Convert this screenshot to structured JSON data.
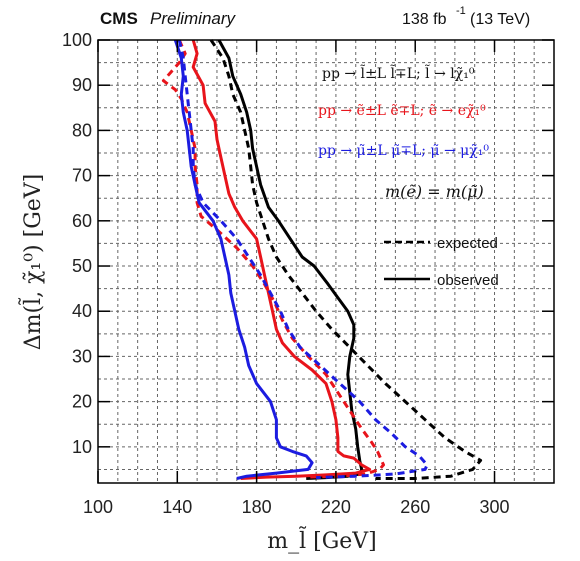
{
  "header": {
    "experiment": "CMS",
    "status": "Preliminary",
    "luminosity": "138 fb",
    "lumi_exp": "-1",
    "energy": "(13 TeV)"
  },
  "legend": {
    "process_all": "pp → l̃±L l̃∓L; l̃ → lχ̃₁⁰",
    "process_e": "pp → ẽ±L ẽ∓L; ẽ → eχ̃₁⁰",
    "process_mu": "pp → μ̃±L μ̃∓L; μ̃ → μχ̃₁⁰",
    "mass_condition": "m(ẽ) = m(μ̃)",
    "expected": "expected",
    "observed": "observed"
  },
  "colors": {
    "all": "#000000",
    "electron": "#e8141b",
    "muon": "#1c1ce0",
    "grid": "#666666"
  },
  "chart_data": {
    "type": "line",
    "xlabel": "m_l̃ [GeV]",
    "ylabel": "Δm(l̃, χ̃₁⁰) [GeV]",
    "xlim": [
      100,
      330
    ],
    "ylim": [
      2,
      100
    ],
    "xticks": [
      100,
      140,
      180,
      220,
      260,
      300
    ],
    "yticks": [
      10,
      20,
      30,
      40,
      50,
      60,
      70,
      80,
      90,
      100
    ],
    "grid": true,
    "series": [
      {
        "name": "pp → l̃±L l̃∓L; l̃ → lχ̃₁⁰ observed",
        "color": "#000000",
        "dash": false,
        "points": [
          [
            161,
            100
          ],
          [
            166,
            96
          ],
          [
            168,
            92
          ],
          [
            172,
            88
          ],
          [
            175,
            84
          ],
          [
            177,
            80
          ],
          [
            178,
            76
          ],
          [
            180,
            72
          ],
          [
            182,
            68
          ],
          [
            186,
            63
          ],
          [
            191,
            60
          ],
          [
            197,
            56
          ],
          [
            203,
            52
          ],
          [
            209,
            50
          ],
          [
            216,
            46
          ],
          [
            221,
            43
          ],
          [
            226,
            40
          ],
          [
            229,
            37
          ],
          [
            229,
            34
          ],
          [
            227,
            30
          ],
          [
            226,
            26
          ],
          [
            227,
            22
          ],
          [
            228,
            18
          ],
          [
            230,
            14
          ],
          [
            231,
            10
          ],
          [
            232,
            7
          ],
          [
            233,
            5
          ],
          [
            232,
            4
          ],
          [
            226,
            3.5
          ],
          [
            215,
            3.2
          ],
          [
            205,
            3
          ]
        ]
      },
      {
        "name": "pp → l̃±L l̃∓L; l̃ → lχ̃₁⁰ expected",
        "color": "#000000",
        "dash": true,
        "points": [
          [
            157,
            100
          ],
          [
            163,
            96
          ],
          [
            166,
            92
          ],
          [
            168,
            88
          ],
          [
            172,
            84
          ],
          [
            174,
            80
          ],
          [
            176,
            76
          ],
          [
            177,
            72
          ],
          [
            178,
            68
          ],
          [
            180,
            64
          ],
          [
            183,
            60
          ],
          [
            186,
            56
          ],
          [
            190,
            52
          ],
          [
            196,
            48
          ],
          [
            203,
            44
          ],
          [
            210,
            40
          ],
          [
            218,
            36
          ],
          [
            227,
            32
          ],
          [
            236,
            28
          ],
          [
            245,
            24
          ],
          [
            255,
            20
          ],
          [
            265,
            16
          ],
          [
            275,
            12
          ],
          [
            285,
            9
          ],
          [
            293,
            7
          ],
          [
            289,
            5
          ],
          [
            278,
            3.5
          ],
          [
            260,
            3
          ],
          [
            240,
            3
          ]
        ]
      },
      {
        "name": "pp → ẽ±L ẽ∓L; ẽ → eχ̃₁⁰ observed",
        "color": "#e8141b",
        "dash": false,
        "points": [
          [
            148,
            100
          ],
          [
            150,
            97
          ],
          [
            148,
            94
          ],
          [
            153,
            90
          ],
          [
            154,
            86
          ],
          [
            159,
            82
          ],
          [
            160,
            78
          ],
          [
            162,
            74
          ],
          [
            164,
            70
          ],
          [
            166,
            66
          ],
          [
            169,
            63
          ],
          [
            173,
            60
          ],
          [
            180,
            56
          ],
          [
            182,
            52
          ],
          [
            184,
            48
          ],
          [
            186,
            44
          ],
          [
            188,
            40
          ],
          [
            190,
            36
          ],
          [
            193,
            33
          ],
          [
            199,
            30
          ],
          [
            208,
            27
          ],
          [
            215,
            24
          ],
          [
            218,
            20
          ],
          [
            220,
            16
          ],
          [
            221,
            12
          ],
          [
            221,
            9
          ],
          [
            224,
            8
          ],
          [
            229,
            7.5
          ],
          [
            233,
            6
          ],
          [
            237,
            5
          ],
          [
            230,
            4.2
          ],
          [
            215,
            3.8
          ],
          [
            200,
            3.5
          ],
          [
            185,
            3.3
          ],
          [
            172,
            3
          ]
        ]
      },
      {
        "name": "pp → ẽ±L ẽ∓L; ẽ → eχ̃₁⁰ expected",
        "color": "#e8141b",
        "dash": true,
        "points": [
          [
            141,
            100
          ],
          [
            144,
            97
          ],
          [
            141,
            95
          ],
          [
            137,
            93
          ],
          [
            133,
            91
          ],
          [
            136,
            90
          ],
          [
            139,
            89
          ],
          [
            142,
            87
          ],
          [
            145,
            84
          ],
          [
            147,
            80
          ],
          [
            149,
            76
          ],
          [
            149,
            72
          ],
          [
            150,
            68
          ],
          [
            150,
            64
          ],
          [
            152,
            61
          ],
          [
            160,
            58
          ],
          [
            170,
            54
          ],
          [
            178,
            50
          ],
          [
            184,
            46
          ],
          [
            189,
            42
          ],
          [
            193,
            38
          ],
          [
            198,
            34
          ],
          [
            206,
            30
          ],
          [
            215,
            26
          ],
          [
            221,
            22
          ],
          [
            227,
            18
          ],
          [
            233,
            14
          ],
          [
            238,
            11
          ],
          [
            241,
            9
          ],
          [
            243,
            7
          ],
          [
            244,
            6
          ],
          [
            242,
            5
          ],
          [
            235,
            4
          ],
          [
            222,
            3.5
          ],
          [
            205,
            3.3
          ]
        ]
      },
      {
        "name": "pp → μ̃±L μ̃∓L; μ̃ → μχ̃₁⁰ observed",
        "color": "#1c1ce0",
        "dash": false,
        "points": [
          [
            139,
            100
          ],
          [
            142,
            96
          ],
          [
            143,
            92
          ],
          [
            142,
            88
          ],
          [
            143,
            84
          ],
          [
            145,
            80
          ],
          [
            146,
            76
          ],
          [
            147,
            72
          ],
          [
            149,
            68
          ],
          [
            151,
            64
          ],
          [
            158,
            60
          ],
          [
            162,
            56
          ],
          [
            164,
            52
          ],
          [
            166,
            48
          ],
          [
            167,
            44
          ],
          [
            169,
            40
          ],
          [
            171,
            36
          ],
          [
            174,
            32
          ],
          [
            176,
            28
          ],
          [
            180,
            24
          ],
          [
            187,
            20
          ],
          [
            190,
            16
          ],
          [
            190,
            12
          ],
          [
            192,
            10
          ],
          [
            198,
            9
          ],
          [
            205,
            8
          ],
          [
            208,
            6.5
          ],
          [
            206,
            5
          ],
          [
            190,
            4.2
          ],
          [
            175,
            3.5
          ],
          [
            170,
            3
          ]
        ]
      },
      {
        "name": "pp → μ̃±L μ̃∓L; μ̃ → μχ̃₁⁰ expected",
        "color": "#1c1ce0",
        "dash": true,
        "points": [
          [
            141,
            100
          ],
          [
            143,
            96
          ],
          [
            144,
            92
          ],
          [
            145,
            88
          ],
          [
            146,
            84
          ],
          [
            147,
            80
          ],
          [
            148,
            76
          ],
          [
            148,
            72
          ],
          [
            149,
            68
          ],
          [
            153,
            64
          ],
          [
            162,
            60
          ],
          [
            170,
            56
          ],
          [
            176,
            52
          ],
          [
            182,
            48
          ],
          [
            187,
            44
          ],
          [
            192,
            40
          ],
          [
            196,
            36
          ],
          [
            202,
            32
          ],
          [
            212,
            28
          ],
          [
            222,
            24
          ],
          [
            232,
            20
          ],
          [
            240,
            16
          ],
          [
            248,
            13
          ],
          [
            255,
            10
          ],
          [
            262,
            8
          ],
          [
            266,
            6
          ],
          [
            265,
            5
          ],
          [
            250,
            4
          ],
          [
            230,
            3.5
          ],
          [
            210,
            3.2
          ]
        ]
      }
    ]
  }
}
